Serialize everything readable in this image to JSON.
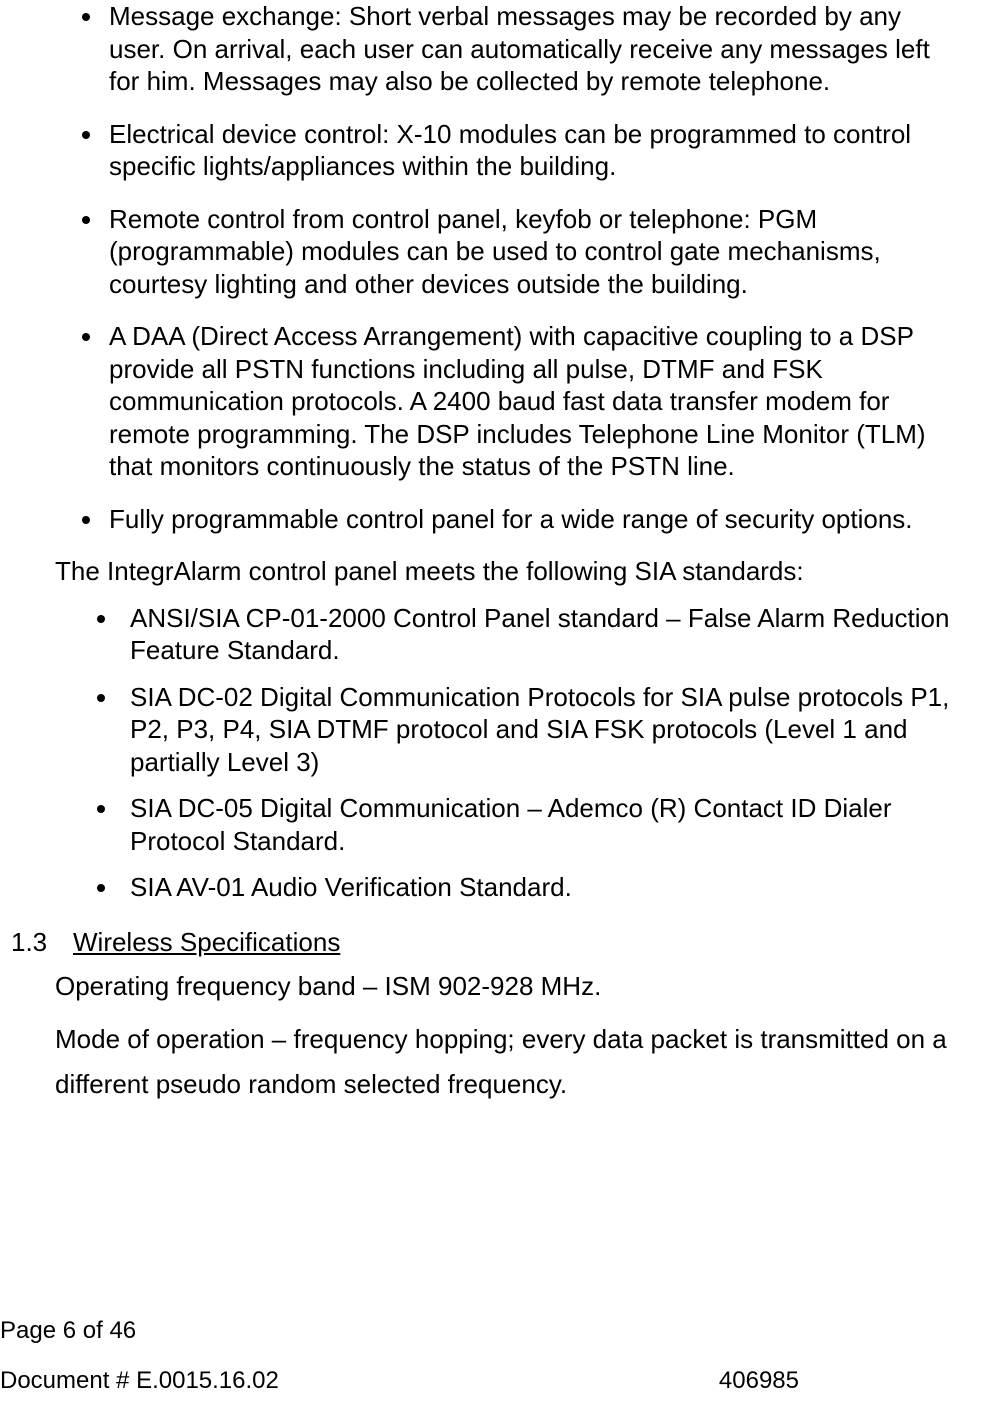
{
  "bullets_main": [
    "Message exchange: Short verbal messages may be recorded by any user. On arrival, each user can automatically receive any messages left for him. Messages may also be collected by remote telephone.",
    "Electrical device control: X-10 modules can be programmed to control specific lights/appliances within the building.",
    "Remote control from control panel, keyfob or telephone: PGM (programmable) modules can be used to control gate mechanisms, courtesy lighting and other devices outside the building.",
    "A DAA (Direct Access Arrangement) with capacitive coupling to a DSP provide all PSTN functions including all pulse, DTMF and FSK communication protocols.  A 2400 baud fast data transfer modem for remote programming.  The DSP includes Telephone Line Monitor (TLM) that monitors continuously the status of the PSTN line.",
    "Fully programmable control panel for a wide range of security options."
  ],
  "standards_intro": "The IntegrAlarm control panel meets the following SIA standards:",
  "standards": [
    "ANSI/SIA CP-01-2000 Control Panel standard – False Alarm Reduction Feature Standard.",
    "SIA DC-02 Digital Communication Protocols for SIA pulse protocols P1, P2, P3, P4, SIA DTMF protocol and SIA FSK protocols (Level 1 and partially Level 3)",
    "SIA DC-05 Digital Communication – Ademco (R) Contact ID Dialer Protocol Standard.",
    "SIA AV-01 Audio Verification Standard."
  ],
  "section": {
    "number": "1.3",
    "title": "Wireless Specifications"
  },
  "spec_line1": "Operating frequency band – ISM 902-928 MHz.",
  "spec_line2": "Mode of operation – frequency hopping; every data packet is transmitted on a different pseudo random selected frequency.",
  "footer": {
    "page_label_prefix": "Page ",
    "page_current": "6",
    "page_of": "  of   ",
    "page_total": "46",
    "doc_label": "Document # E.0015.16.02",
    "doc_code": "406985"
  }
}
